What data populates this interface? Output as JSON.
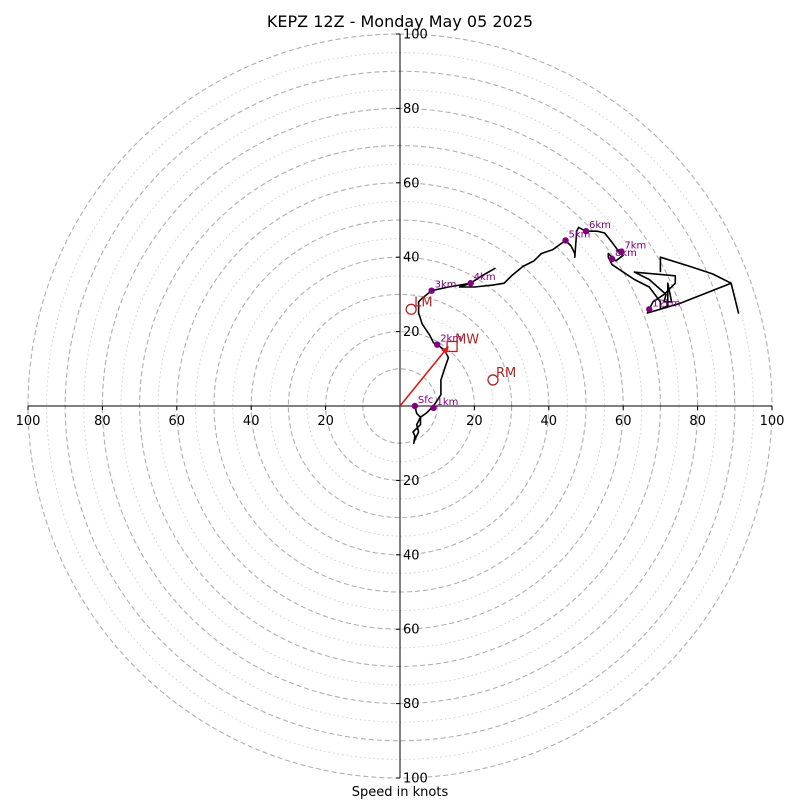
{
  "chart_data": {
    "type": "hodograph",
    "title": "KEPZ 12Z - Monday May 05 2025",
    "xlabel": "Speed in knots",
    "range": [
      -100,
      100
    ],
    "ring_major": [
      10,
      30,
      50,
      70,
      90
    ],
    "ring_dashed": [
      20,
      40,
      60,
      80,
      100
    ],
    "ring_dotted": [
      15,
      25,
      35,
      45,
      55,
      65,
      75,
      85,
      95
    ],
    "x_ticks": [
      {
        "value": -100,
        "label": "100"
      },
      {
        "value": -80,
        "label": "80"
      },
      {
        "value": -60,
        "label": "60"
      },
      {
        "value": -40,
        "label": "40"
      },
      {
        "value": -20,
        "label": "20"
      },
      {
        "value": 20,
        "label": "20"
      },
      {
        "value": 40,
        "label": "40"
      },
      {
        "value": 60,
        "label": "60"
      },
      {
        "value": 80,
        "label": "80"
      },
      {
        "value": 100,
        "label": "100"
      }
    ],
    "y_ticks": [
      {
        "value": 100,
        "label": "100"
      },
      {
        "value": 80,
        "label": "80"
      },
      {
        "value": 60,
        "label": "60"
      },
      {
        "value": 40,
        "label": "40"
      },
      {
        "value": 20,
        "label": "20"
      },
      {
        "value": -20,
        "label": "20"
      },
      {
        "value": -40,
        "label": "40"
      },
      {
        "value": -60,
        "label": "60"
      },
      {
        "value": -80,
        "label": "80"
      },
      {
        "value": -100,
        "label": "100"
      }
    ],
    "trace": {
      "color": "#000000",
      "points": [
        [
          4,
          0
        ],
        [
          4.5,
          -2
        ],
        [
          5.5,
          -3
        ],
        [
          4.5,
          -5
        ],
        [
          5,
          -7
        ],
        [
          4,
          -9
        ],
        [
          3.7,
          -10
        ],
        [
          4,
          -8
        ],
        [
          3.5,
          -7
        ],
        [
          4.5,
          -6
        ],
        [
          5.5,
          -5
        ],
        [
          5.5,
          -3
        ],
        [
          7,
          -2
        ],
        [
          9,
          0
        ],
        [
          11,
          3
        ],
        [
          11,
          7
        ],
        [
          12,
          10
        ],
        [
          13,
          13
        ],
        [
          12,
          15
        ],
        [
          10,
          16.5
        ],
        [
          9,
          17
        ],
        [
          8,
          19
        ],
        [
          6,
          22
        ],
        [
          5,
          25
        ],
        [
          5,
          28
        ],
        [
          6,
          29
        ],
        [
          8.5,
          31
        ],
        [
          13,
          32
        ],
        [
          19,
          33
        ],
        [
          22,
          35
        ],
        [
          25.5,
          37
        ],
        [
          22,
          35
        ],
        [
          19,
          33
        ],
        [
          16,
          32
        ],
        [
          20,
          32
        ],
        [
          25,
          32.5
        ],
        [
          28,
          33
        ],
        [
          30,
          35
        ],
        [
          33,
          37.5
        ],
        [
          36,
          39
        ],
        [
          38,
          41
        ],
        [
          41,
          42
        ],
        [
          44.5,
          44.5
        ],
        [
          46,
          43
        ],
        [
          47,
          41
        ],
        [
          47,
          40
        ],
        [
          47.5,
          47
        ],
        [
          48,
          48
        ],
        [
          50,
          47
        ],
        [
          53,
          47
        ],
        [
          55,
          46.5
        ],
        [
          57,
          44
        ],
        [
          58.5,
          42
        ],
        [
          59,
          41
        ],
        [
          60,
          40.5
        ],
        [
          58,
          39
        ],
        [
          57,
          40
        ],
        [
          56,
          41
        ],
        [
          56,
          40
        ],
        [
          57,
          38
        ],
        [
          60,
          36
        ],
        [
          63,
          34
        ],
        [
          67,
          32
        ],
        [
          70,
          28
        ],
        [
          70,
          26
        ],
        [
          72,
          27
        ],
        [
          72,
          33
        ],
        [
          73,
          28
        ],
        [
          71,
          28
        ],
        [
          71.5,
          30
        ],
        [
          67,
          34
        ],
        [
          63,
          36
        ],
        [
          74,
          35
        ],
        [
          74,
          33
        ],
        [
          71,
          30
        ],
        [
          68,
          28
        ],
        [
          67,
          26
        ],
        [
          66.5,
          25
        ],
        [
          75,
          27.5
        ],
        [
          89,
          33
        ],
        [
          91,
          25
        ],
        [
          89,
          33
        ],
        [
          84,
          35.5
        ],
        [
          78,
          37.5
        ],
        [
          70,
          40
        ],
        [
          70,
          36
        ]
      ]
    },
    "height_markers": [
      {
        "label": "Sfc",
        "u": 4,
        "v": 0
      },
      {
        "label": "1km",
        "u": 9,
        "v": -0.5
      },
      {
        "label": "2km",
        "u": 10,
        "v": 16.5
      },
      {
        "label": "3km",
        "u": 8.5,
        "v": 31
      },
      {
        "label": "4km",
        "u": 19,
        "v": 33
      },
      {
        "label": "5km",
        "u": 44.5,
        "v": 44.5
      },
      {
        "label": "6km",
        "u": 50,
        "v": 47
      },
      {
        "label": "7km",
        "u": 59.5,
        "v": 41.5
      },
      {
        "label": "8km",
        "u": 57,
        "v": 39.5
      },
      {
        "label": "12km",
        "u": 67,
        "v": 26
      }
    ],
    "storm_motion": [
      {
        "label": "LM",
        "u": 3,
        "v": 26,
        "shape": "circle"
      },
      {
        "label": "MW",
        "u": 14,
        "v": 16,
        "shape": "square"
      },
      {
        "label": "RM",
        "u": 25,
        "v": 7,
        "shape": "circle"
      }
    ],
    "shear_vector": {
      "from": [
        0,
        0
      ],
      "to": [
        13,
        16
      ],
      "color": "#e31a1c"
    },
    "colors": {
      "trace": "#000000",
      "marker": "#800080",
      "storm": "#b22222",
      "grid": "#b0b0b0"
    }
  }
}
